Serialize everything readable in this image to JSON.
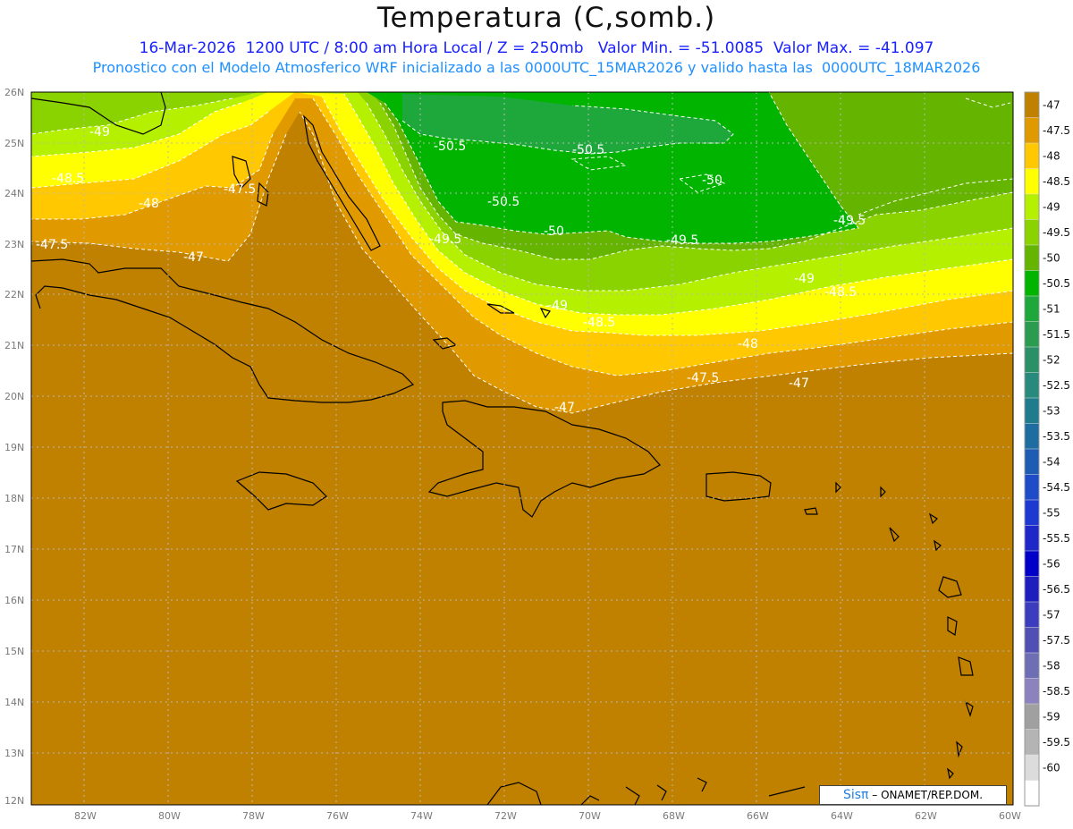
{
  "title": "Temperatura (C,somb.)",
  "subtitle_1": "16-Mar-2026  1200 UTC / 8:00 am Hora Local / Z = 250mb   Valor Min. = -51.0085  Valor Max. = -41.097",
  "subtitle_2": "Pronostico con el Modelo Atmosferico WRF inicializado a las 0000UTC_15MAR2026 y valido hasta las  0000UTC_18MAR2026",
  "credit": {
    "logo": "Sisπ",
    "text": " – ONAMET/REP.DOM."
  },
  "axes": {
    "lat_labels": [
      "26N",
      "25N",
      "24N",
      "23N",
      "22N",
      "21N",
      "20N",
      "19N",
      "18N",
      "17N",
      "16N",
      "15N",
      "14N",
      "13N",
      "12N"
    ],
    "lon_labels": [
      "82W",
      "80W",
      "78W",
      "76W",
      "74W",
      "72W",
      "70W",
      "68W",
      "66W",
      "64W",
      "62W",
      "60W"
    ],
    "lat_range": [
      12,
      26
    ],
    "lon_range": [
      -83.2,
      -60
    ]
  },
  "contour_labels": [
    "-49",
    "-48.5",
    "-48",
    "-47.5",
    "-47.5",
    "-47",
    "-50.5",
    "-50.5",
    "-50.5",
    "-49.5",
    "-50",
    "-50",
    "-49.5",
    "-49.5",
    "-49",
    "-49",
    "-48.5",
    "-48.5",
    "-48",
    "-47.5",
    "-47",
    "-47"
  ],
  "colorbar": {
    "labels": [
      "-47",
      "-47.5",
      "-48",
      "-48.5",
      "-49",
      "-49.5",
      "-50",
      "-50.5",
      "-51",
      "-51.5",
      "-52",
      "-52.5",
      "-53",
      "-53.5",
      "-54",
      "-54.5",
      "-55",
      "-55.5",
      "-56",
      "-56.5",
      "-57",
      "-57.5",
      "-58",
      "-58.5",
      "-59",
      "-59.5",
      "-60"
    ],
    "colors": [
      "#c08000",
      "#e09a00",
      "#ffc800",
      "#ffff00",
      "#b4f000",
      "#8ad200",
      "#64b400",
      "#00b400",
      "#1ea83c",
      "#2a9c50",
      "#2a9068",
      "#288a7c",
      "#1e7c8c",
      "#1e6ca0",
      "#1e5cb4",
      "#1e4cc8",
      "#1e38d2",
      "#1e28c8",
      "#0000c8",
      "#1e1ebe",
      "#3c3cbe",
      "#5050b4",
      "#6e6eb4",
      "#8c82be",
      "#a0a0a0",
      "#b4b4b4",
      "#dcdcdc",
      "#ffffff"
    ]
  }
}
